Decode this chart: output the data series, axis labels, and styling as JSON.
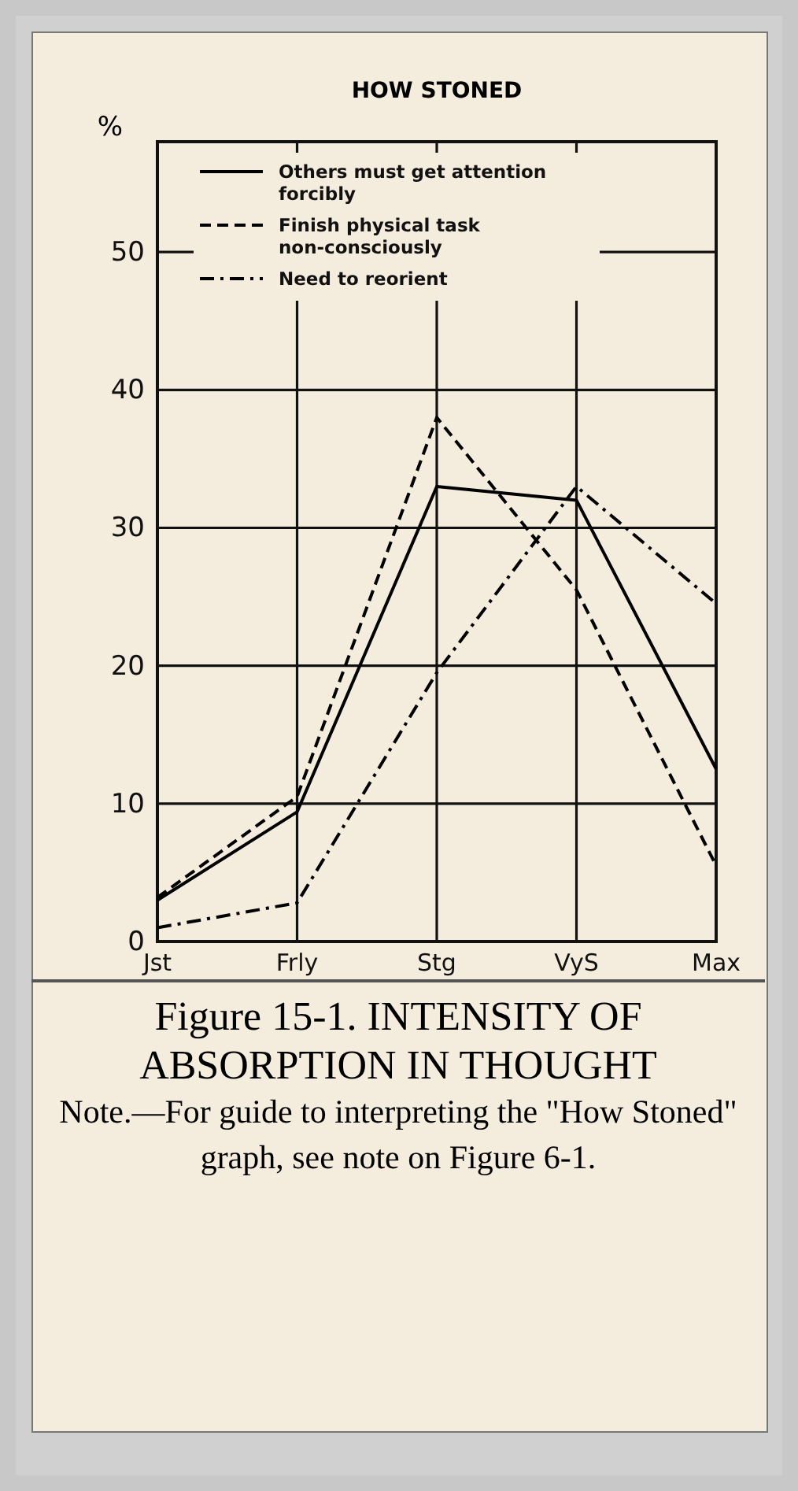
{
  "chart_data": {
    "type": "line",
    "title": "HOW STONED",
    "ylabel": "%",
    "categories": [
      "Jst",
      "Frly",
      "Stg",
      "VyS",
      "Max"
    ],
    "series": [
      {
        "name": "Others must get attention forcibly",
        "color": "#000000",
        "line_style": "solid",
        "values": [
          3,
          9.4,
          33,
          32,
          12.5
        ]
      },
      {
        "name": "Finish physical task non-consciously",
        "color": "#000000",
        "line_style": "dashed",
        "values": [
          3.2,
          10.5,
          38,
          25.5,
          5.5
        ]
      },
      {
        "name": "Need to reorient",
        "color": "#000000",
        "line_style": "dashdot",
        "values": [
          1,
          2.8,
          19.5,
          33,
          24.5
        ]
      }
    ],
    "ylim": [
      0,
      58
    ],
    "yticks": [
      0,
      10,
      20,
      30,
      40,
      50
    ],
    "grid": true,
    "legend": "top",
    "marker": "none",
    "annotations": [
      "Figure 15-1. INTENSITY OF ABSORPTION IN THOUGHT",
      "Note.—For guide to interpreting the \"How Stoned\" graph, see note on Figure 6-1."
    ]
  }
}
